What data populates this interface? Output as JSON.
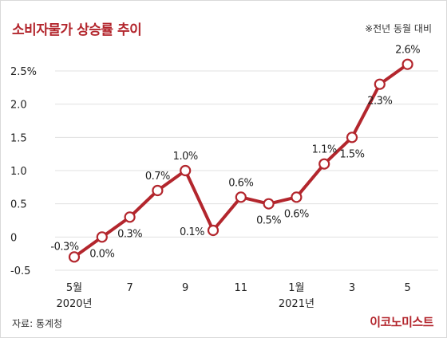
{
  "title": "소비자물가 상승률 추이",
  "note": "※전년 동월 대비",
  "source": "자료: 통계청",
  "logo": "이코노미스트",
  "colors": {
    "accent": "#b3262d",
    "line": "#b3262d",
    "grid": "#e0e0e0",
    "marker_fill": "#ffffff"
  },
  "chart_data": {
    "type": "line",
    "title": "소비자물가 상승률 추이",
    "xlabel": "",
    "ylabel": "",
    "ylim": [
      -0.5,
      2.5
    ],
    "y_ticks": [
      "2.5%",
      "2.0",
      "1.5",
      "1.0",
      "0.5",
      "0",
      "-0.5"
    ],
    "y_tick_values": [
      2.5,
      2.0,
      1.5,
      1.0,
      0.5,
      0,
      -0.5
    ],
    "grid": "horizontal",
    "categories": [
      "2020-05",
      "2020-06",
      "2020-07",
      "2020-08",
      "2020-09",
      "2020-10",
      "2020-11",
      "2020-12",
      "2021-01",
      "2021-02",
      "2021-03",
      "2021-04",
      "2021-05"
    ],
    "x_tick_labels": [
      {
        "label": "5월",
        "sub": "2020년",
        "at": "2020-05"
      },
      {
        "label": "7",
        "sub": "",
        "at": "2020-07"
      },
      {
        "label": "9",
        "sub": "",
        "at": "2020-09"
      },
      {
        "label": "11",
        "sub": "",
        "at": "2020-11"
      },
      {
        "label": "1월",
        "sub": "2021년",
        "at": "2021-01"
      },
      {
        "label": "3",
        "sub": "",
        "at": "2021-03"
      },
      {
        "label": "5",
        "sub": "",
        "at": "2021-05"
      }
    ],
    "series": [
      {
        "values": [
          -0.3,
          0.0,
          0.3,
          0.7,
          1.0,
          0.1,
          0.6,
          0.5,
          0.6,
          1.1,
          1.5,
          2.3,
          2.6
        ],
        "labels": [
          "-0.3%",
          "0.0%",
          "0.3%",
          "0.7%",
          "1.0%",
          "0.1%",
          "0.6%",
          "0.5%",
          "0.6%",
          "1.1%",
          "1.5%",
          "2.3%",
          "2.6%"
        ],
        "label_pos": [
          "above",
          "below",
          "below",
          "above",
          "above",
          "left",
          "above",
          "below",
          "below",
          "above",
          "below",
          "below",
          "above"
        ]
      }
    ]
  }
}
